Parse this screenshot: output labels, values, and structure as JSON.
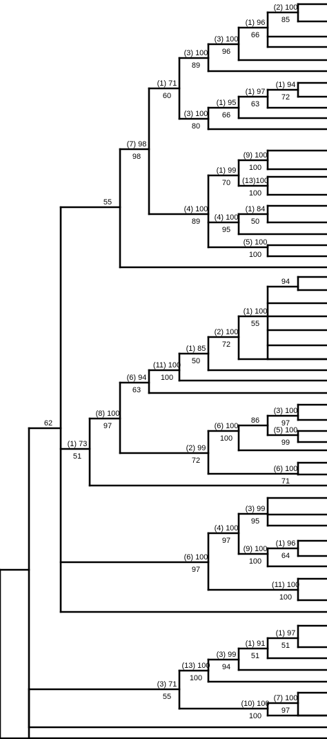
{
  "figure": {
    "line_color": "#000000",
    "background": "#ffffff"
  },
  "clades": [
    {
      "id": "n1",
      "above": "(2) 100",
      "below": "85"
    },
    {
      "id": "n2",
      "above": "(1) 96",
      "below": "66"
    },
    {
      "id": "n3",
      "above": "(3) 100",
      "below": "96"
    },
    {
      "id": "n4",
      "above": "(3) 100",
      "below": "89"
    },
    {
      "id": "n5",
      "above": "(1) 94",
      "below": "72"
    },
    {
      "id": "n6",
      "above": "(1) 97",
      "below": "63"
    },
    {
      "id": "n7",
      "above": "(1) 95",
      "below": "66"
    },
    {
      "id": "n8",
      "above": "(3) 100",
      "below": "80"
    },
    {
      "id": "n9",
      "above": "(1) 71",
      "below": "60"
    },
    {
      "id": "n10",
      "above": "(9) 100",
      "below": "100"
    },
    {
      "id": "n11",
      "above": "(13)100",
      "below": "100"
    },
    {
      "id": "n12",
      "above": "(1) 99",
      "below": "70"
    },
    {
      "id": "n13",
      "above": "(1) 84",
      "below": "50"
    },
    {
      "id": "n14",
      "above": "(4) 100",
      "below": "95"
    },
    {
      "id": "n15",
      "above": "(5) 100",
      "below": "100"
    },
    {
      "id": "n16",
      "above": "(4) 100",
      "below": "89"
    },
    {
      "id": "n17",
      "above": "(7) 98",
      "below": "98"
    },
    {
      "id": "n18",
      "above": "55",
      "below": ""
    },
    {
      "id": "n19",
      "above": "94",
      "below": ""
    },
    {
      "id": "n20",
      "above": "(1) 100",
      "below": "55"
    },
    {
      "id": "n21",
      "above": "(2) 100",
      "below": "72"
    },
    {
      "id": "n22",
      "above": "(1) 85",
      "below": "50"
    },
    {
      "id": "n23",
      "above": "(11) 100",
      "below": "100"
    },
    {
      "id": "n24",
      "above": "(6) 94",
      "below": "63"
    },
    {
      "id": "n25",
      "above": "(3) 100",
      "below": "97"
    },
    {
      "id": "n26",
      "above": "(5) 100",
      "below": "99"
    },
    {
      "id": "n27",
      "above": "86",
      "below": ""
    },
    {
      "id": "n28",
      "above": "(6) 100",
      "below": "100"
    },
    {
      "id": "n29",
      "above": "(2) 99",
      "below": "72"
    },
    {
      "id": "n30",
      "above": "(8) 100",
      "below": "97"
    },
    {
      "id": "n31",
      "above": "(6) 100",
      "below": "71"
    },
    {
      "id": "n32",
      "above": "(1) 73",
      "below": "51"
    },
    {
      "id": "n33",
      "above": "(3) 99",
      "below": "95"
    },
    {
      "id": "n34",
      "above": "(1) 96",
      "below": "64"
    },
    {
      "id": "n35",
      "above": "(9) 100",
      "below": "100"
    },
    {
      "id": "n36",
      "above": "(4) 100",
      "below": "97"
    },
    {
      "id": "n37",
      "above": "(11) 100",
      "below": "100"
    },
    {
      "id": "n38",
      "above": "(6) 100",
      "below": "97"
    },
    {
      "id": "n39",
      "above": "62",
      "below": ""
    },
    {
      "id": "n40",
      "above": "(1) 97",
      "below": "51"
    },
    {
      "id": "n41",
      "above": "(1) 91",
      "below": "51"
    },
    {
      "id": "n42",
      "above": "(3) 99",
      "below": "94"
    },
    {
      "id": "n43",
      "above": "(13) 100",
      "below": "100"
    },
    {
      "id": "n44",
      "above": "(7) 100",
      "below": "97"
    },
    {
      "id": "n45",
      "above": "(10) 100",
      "below": "100"
    },
    {
      "id": "n46",
      "above": "(3) 71",
      "below": "55"
    }
  ]
}
